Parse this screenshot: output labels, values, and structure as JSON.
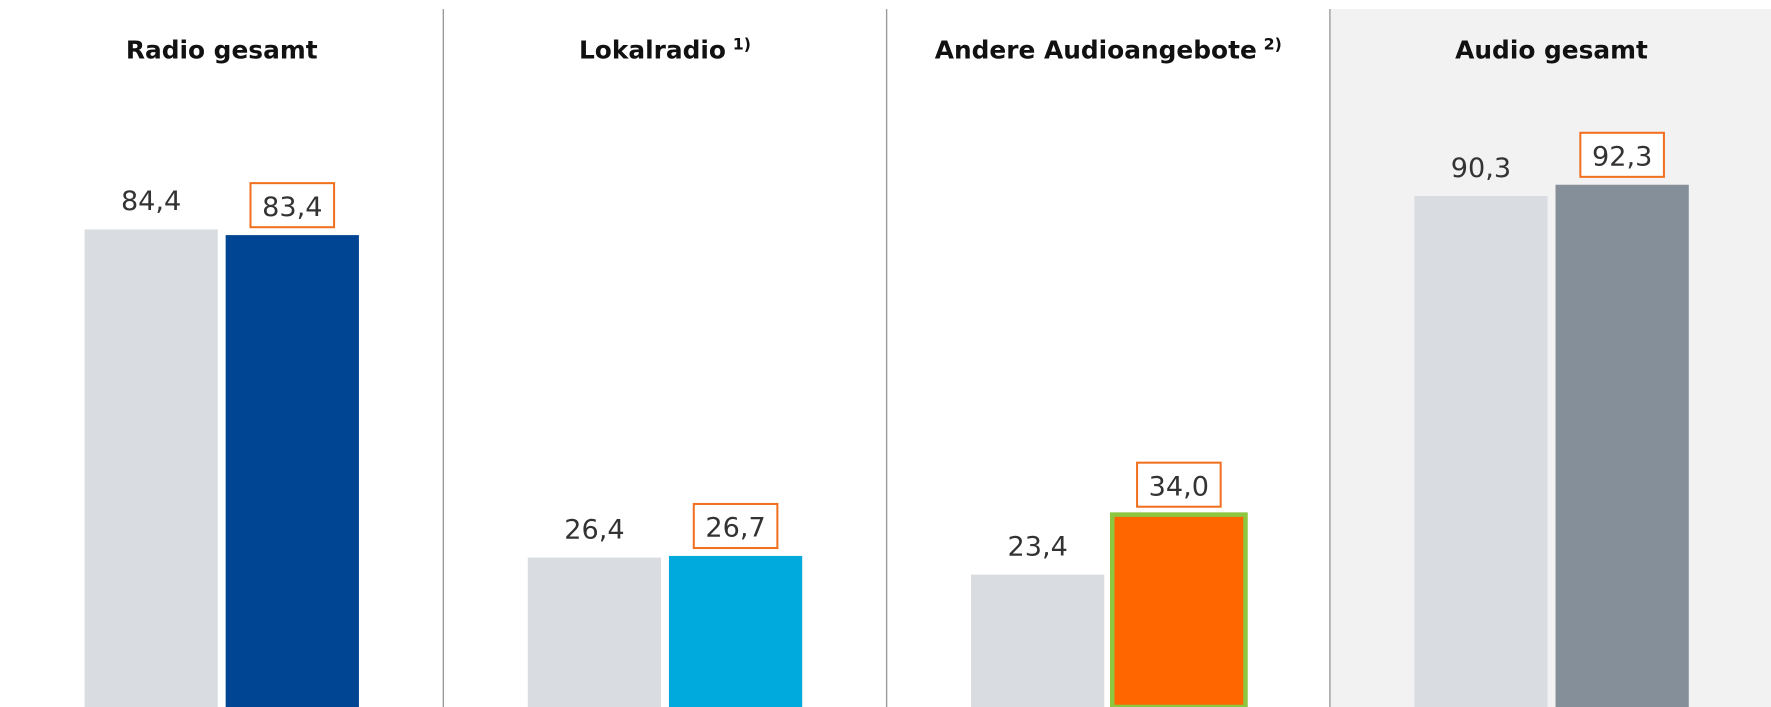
{
  "chart_data": [
    {
      "type": "bar",
      "title": "Radio gesamt",
      "values": [
        84.4,
        83.4
      ],
      "value_labels": [
        "84,4",
        "83,4"
      ],
      "colors": [
        "#d9dde1",
        "#004494"
      ],
      "boxed_label": 1
    },
    {
      "type": "bar",
      "title": "Lokalradio",
      "title_note": "1)",
      "values": [
        26.4,
        26.7
      ],
      "value_labels": [
        "26,4",
        "26,7"
      ],
      "colors": [
        "#d9dde1",
        "#00aadd"
      ],
      "boxed_label": 1
    },
    {
      "type": "bar",
      "title": "Andere Audioangebote",
      "title_note": "2)",
      "values": [
        23.4,
        34.0
      ],
      "value_labels": [
        "23,4",
        "34,0"
      ],
      "colors": [
        "#d9dde1",
        "#ff6600"
      ],
      "boxed_label": 1,
      "outline": {
        "bar": 1,
        "color": "#8dc63f"
      }
    },
    {
      "type": "bar",
      "title": "Audio gesamt",
      "values": [
        90.3,
        92.3
      ],
      "value_labels": [
        "90,3",
        "92,3"
      ],
      "colors": [
        "#d9dde1",
        "#848f99"
      ],
      "boxed_label": 1,
      "background": "#f2f2f2"
    }
  ]
}
